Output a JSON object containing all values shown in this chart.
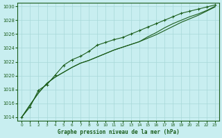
{
  "title": "Graphe pression niveau de la mer (hPa)",
  "background_color": "#c8eef0",
  "grid_color": "#a8d8d8",
  "line_color": "#1a5c1a",
  "x_values": [
    0,
    1,
    2,
    3,
    4,
    5,
    6,
    7,
    8,
    9,
    10,
    11,
    12,
    13,
    14,
    15,
    16,
    17,
    18,
    19,
    20,
    21,
    22,
    23
  ],
  "line1": [
    1014.0,
    1015.5,
    1017.9,
    1018.7,
    1020.1,
    1021.5,
    1022.3,
    1022.8,
    1023.5,
    1024.4,
    1024.8,
    1025.2,
    1025.5,
    1026.0,
    1026.5,
    1027.0,
    1027.5,
    1028.0,
    1028.5,
    1029.0,
    1029.3,
    1029.6,
    1029.9,
    1030.2
  ],
  "line2": [
    1014.0,
    1015.8,
    1017.5,
    1018.9,
    1019.8,
    1020.5,
    1021.2,
    1021.8,
    1022.2,
    1022.7,
    1023.2,
    1023.7,
    1024.1,
    1024.5,
    1024.9,
    1025.4,
    1025.9,
    1026.5,
    1027.1,
    1027.7,
    1028.2,
    1028.7,
    1029.3,
    1029.9
  ],
  "line3": [
    1014.0,
    1015.8,
    1017.5,
    1018.9,
    1019.8,
    1020.5,
    1021.2,
    1021.8,
    1022.2,
    1022.7,
    1023.2,
    1023.7,
    1024.1,
    1024.5,
    1024.9,
    1025.6,
    1026.2,
    1026.9,
    1027.5,
    1028.0,
    1028.5,
    1028.9,
    1029.4,
    1030.0
  ],
  "ylim_min": 1013.5,
  "ylim_max": 1030.5,
  "xlim_min": -0.5,
  "xlim_max": 23.5,
  "yticks": [
    1014,
    1016,
    1018,
    1020,
    1022,
    1024,
    1026,
    1028,
    1030
  ],
  "xticks": [
    0,
    1,
    2,
    3,
    4,
    5,
    6,
    7,
    8,
    9,
    10,
    11,
    12,
    13,
    14,
    15,
    16,
    17,
    18,
    19,
    20,
    21,
    22,
    23
  ]
}
